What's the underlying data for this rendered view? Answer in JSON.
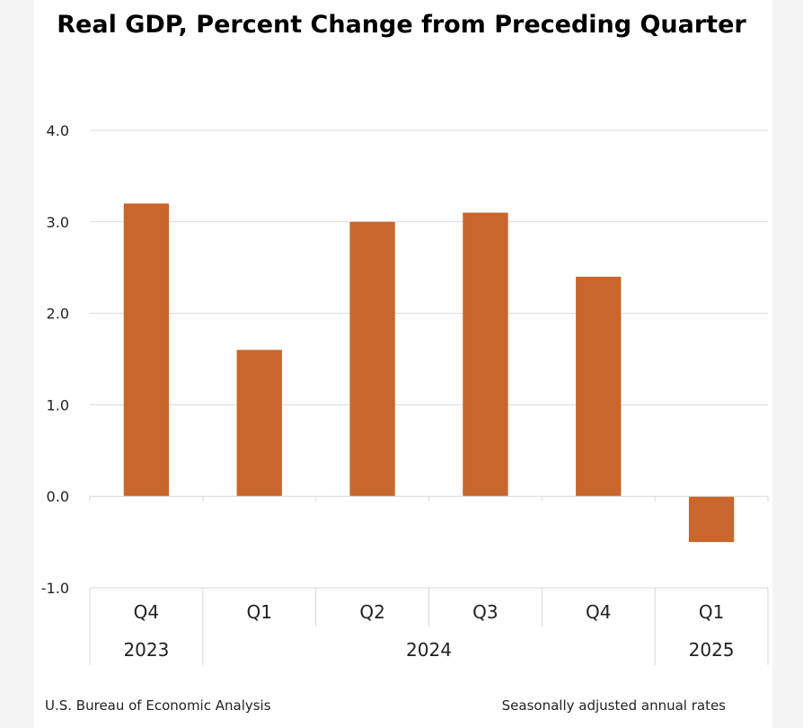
{
  "chart_data": {
    "type": "bar",
    "title": "Real GDP, Percent Change from Preceding Quarter",
    "categories": [
      "Q4",
      "Q1",
      "Q2",
      "Q3",
      "Q4",
      "Q1"
    ],
    "years": [
      {
        "label": "2023",
        "span": [
          0,
          0
        ]
      },
      {
        "label": "2024",
        "span": [
          1,
          4
        ]
      },
      {
        "label": "2025",
        "span": [
          5,
          5
        ]
      }
    ],
    "values": [
      3.2,
      1.6,
      3.0,
      3.1,
      2.4,
      -0.5
    ],
    "ylim": [
      -1.0,
      4.0
    ],
    "yticks": [
      "4.0",
      "3.0",
      "2.0",
      "1.0",
      "0.0",
      "-1.0"
    ],
    "grid": true,
    "bar_color": "#c8662c",
    "xlabel": "",
    "ylabel": ""
  },
  "footer": {
    "source": "U.S. Bureau of Economic Analysis",
    "note": "Seasonally adjusted annual rates"
  }
}
